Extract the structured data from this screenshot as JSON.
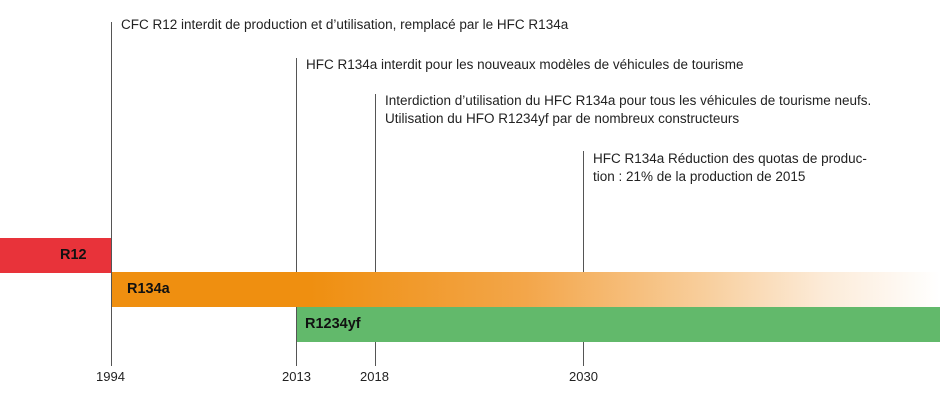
{
  "annotations": {
    "y1994": [
      "CFC R12 interdit de production et d’utilisation, remplacé par le HFC R134a"
    ],
    "y2013": [
      "HFC R134a interdit pour les nouveaux modèles de véhicules de tourisme"
    ],
    "y2018": [
      "Interdiction d’utilisation du HFC R134a pour tous les véhicules de tourisme neufs.",
      "Utilisation du HFO R1234yf par de nombreux constructeurs"
    ],
    "y2030": [
      "HFC R134a Réduction des quotas de produc-",
      "tion : 21% de la production de 2015"
    ]
  },
  "bars": {
    "r12": {
      "label": "R12",
      "color": "#e8333a"
    },
    "r134a": {
      "label": "R134a",
      "color": "#ef8f10"
    },
    "r1234yf": {
      "label": "R1234yf",
      "color": "#62b96b"
    }
  },
  "years": [
    "1994",
    "2013",
    "2018",
    "2030"
  ]
}
